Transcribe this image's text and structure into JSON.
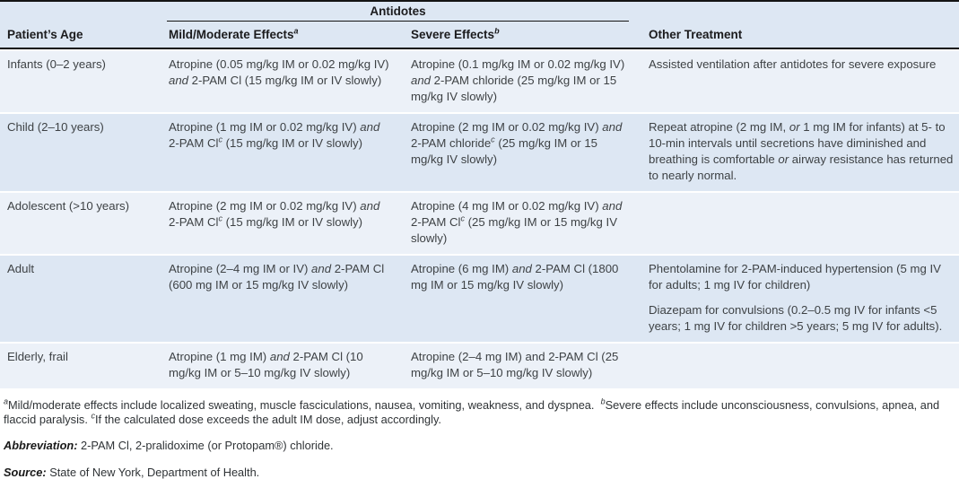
{
  "colors": {
    "row_shade_dark": "#dde7f3",
    "row_shade_light": "#ecf1f8",
    "rule_black": "#141414",
    "body_text": "#3e4245"
  },
  "table": {
    "spanner": "Antidotes",
    "columns": {
      "age": "Patient’s Age",
      "mild": "Mild/Moderate Effects^{a}",
      "severe": "Severe Effects^{b}",
      "other": "Other Treatment"
    },
    "rows": [
      {
        "age": "Infants (0–2 years)",
        "mild": "Atropine (0.05 mg/kg IM or 0.02 mg/kg IV) *and* 2-PAM Cl (15 mg/kg IM or IV slowly)",
        "severe": "Atropine (0.1 mg/kg IM or 0.02 mg/kg IV) *and* 2-PAM chloride (25 mg/kg IM or 15 mg/kg IV slowly)",
        "other": [
          "Assisted ventilation after antidotes for severe exposure"
        ]
      },
      {
        "age": "Child (2–10 years)",
        "mild": "Atropine (1 mg IM or 0.02 mg/kg IV) *and* 2-PAM Cl^{c} (15 mg/kg IM or IV slowly)",
        "severe": "Atropine (2 mg IM or 0.02 mg/kg IV) *and* 2-PAM chloride^{c} (25 mg/kg IM or 15 mg/kg IV slowly)",
        "other": [
          "Repeat atropine (2 mg IM, *or* 1 mg IM for infants) at 5- to 10-min intervals until secretions have diminished and breathing is comfortable *or* airway resistance has returned to nearly normal."
        ]
      },
      {
        "age": "Adolescent (>10 years)",
        "mild": "Atropine (2 mg IM or 0.02 mg/kg IV) *and* 2-PAM Cl^{c} (15 mg/kg IM or IV slowly)",
        "severe": "Atropine (4 mg IM or 0.02 mg/kg IV) *and* 2-PAM Cl^{c} (25 mg/kg IM or 15 mg/kg IV slowly)",
        "other": []
      },
      {
        "age": "Adult",
        "mild": "Atropine (2–4 mg IM or IV) *and* 2-PAM Cl (600 mg IM or 15 mg/kg IV slowly)",
        "severe": "Atropine (6 mg IM) *and* 2-PAM Cl (1800 mg IM or 15 mg/kg IV slowly)",
        "other": [
          "Phentolamine for 2-PAM-induced hypertension (5 mg IV for adults; 1 mg IV for children)",
          "Diazepam for convulsions (0.2–0.5 mg IV for infants <5 years; 1 mg IV for children >5 years; 5 mg IV for adults)."
        ]
      },
      {
        "age": "Elderly, frail",
        "mild": "Atropine (1 mg IM) *and* 2-PAM Cl (10 mg/kg IM or 5–10 mg/kg IV slowly)",
        "severe": "Atropine (2–4 mg IM) and 2-PAM Cl (25 mg/kg IM or 5–10 mg/kg IV slowly)",
        "other": []
      }
    ]
  },
  "footnotes": {
    "notes": "^{a}Mild/moderate effects include localized sweating, muscle fasciculations, nausea, vomiting, weakness, and dyspnea.  ^{b}Severe effects include unconsciousness, convulsions, apnea, and flaccid paralysis. ^{c}If the calculated dose exceeds the adult IM dose, adjust accordingly.",
    "abbreviation_label": "Abbreviation:",
    "abbreviation_text": "2-PAM Cl, 2-pralidoxime (or Protopam®) chloride.",
    "source_label": "Source:",
    "source_text": "State of New York, Department of Health."
  }
}
